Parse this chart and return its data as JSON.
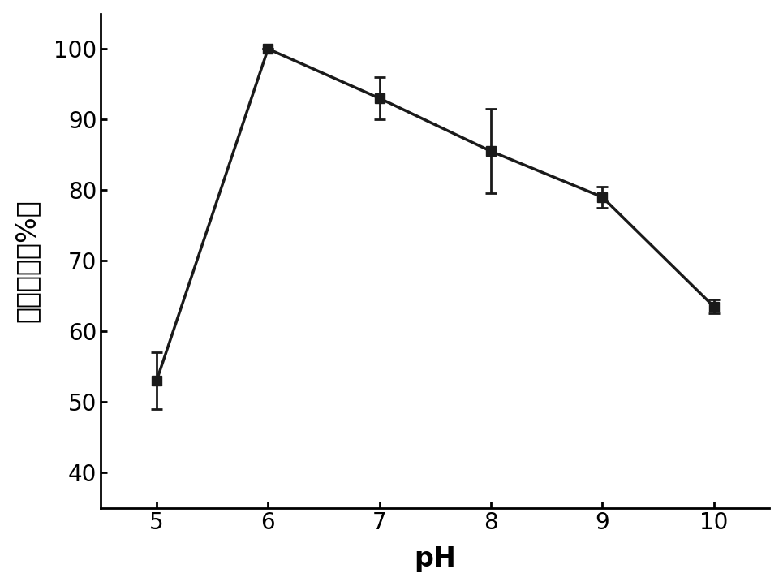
{
  "x": [
    5,
    6,
    7,
    8,
    9,
    10
  ],
  "y": [
    53,
    100,
    93,
    85.5,
    79,
    63.5
  ],
  "yerr": [
    4,
    0,
    3,
    6,
    1.5,
    1
  ],
  "xlabel": "pH",
  "ylabel": "相对活性（%）",
  "xlim": [
    4.5,
    10.5
  ],
  "ylim": [
    35,
    105
  ],
  "xticks": [
    5,
    6,
    7,
    8,
    9,
    10
  ],
  "yticks": [
    40,
    50,
    60,
    70,
    80,
    90,
    100
  ],
  "line_color": "#1a1a1a",
  "marker": "s",
  "marker_size": 8,
  "line_width": 2.5,
  "background_color": "#ffffff",
  "tick_fontsize": 20,
  "label_fontsize": 24
}
